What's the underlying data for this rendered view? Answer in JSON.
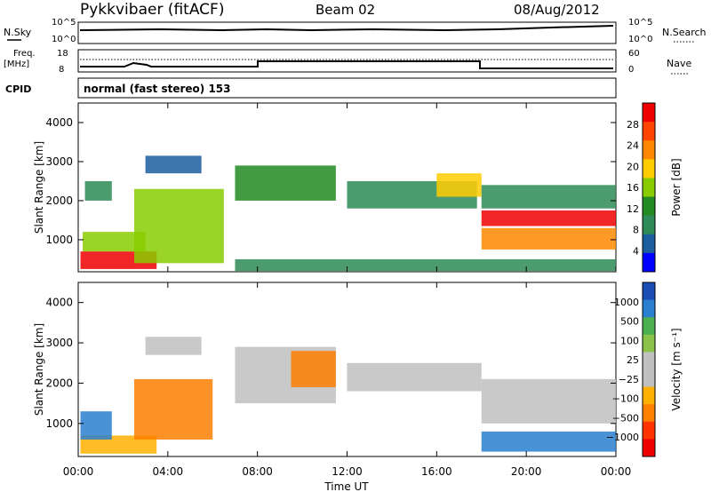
{
  "header": {
    "station": "Pykkvibaer (fitACF)",
    "beam": "Beam 02",
    "date": "08/Aug/2012"
  },
  "status_panels": {
    "nsky": {
      "label": "N.Sky",
      "ticks_left": [
        "10^5",
        "10^0"
      ]
    },
    "nsearch": {
      "label": "N.Search",
      "ticks_right": [
        "10^5",
        "10^0"
      ]
    },
    "freq": {
      "label_line1": "Freq.",
      "label_line2": "[MHz]",
      "ticks_left": [
        "18",
        "8"
      ]
    },
    "nave": {
      "label": "Nave",
      "ticks_right": [
        "60",
        "0"
      ]
    },
    "cpid": {
      "label": "CPID",
      "program": "normal (fast stereo) 153"
    }
  },
  "chart_data": [
    {
      "type": "heatmap",
      "name": "power",
      "ylabel": "Slant Range [km]",
      "ylim": [
        180,
        4500
      ],
      "yticks": [
        "4000",
        "3000",
        "2000",
        "1000"
      ],
      "xlabel": "Time UT",
      "xticks": [
        "00:00",
        "04:00",
        "08:00",
        "12:00",
        "16:00",
        "20:00",
        "00:00"
      ],
      "colorbar": {
        "label": "Power [dB]",
        "ticks": [
          "28",
          "24",
          "20",
          "16",
          "12",
          "8",
          "4"
        ],
        "colors": [
          "#ee0000",
          "#ff4400",
          "#ff8800",
          "#ffcc00",
          "#88cc00",
          "#228b22",
          "#2e8b57",
          "#1b5e9e",
          "#0000ff"
        ]
      },
      "regions": [
        {
          "t0": 0.1,
          "t1": 3.5,
          "r0": 250,
          "r1": 700,
          "level": 28
        },
        {
          "t0": 0.2,
          "t1": 3.0,
          "r0": 700,
          "r1": 1200,
          "level": 14
        },
        {
          "t0": 0.3,
          "t1": 1.5,
          "r0": 2000,
          "r1": 2500,
          "level": 8
        },
        {
          "t0": 2.5,
          "t1": 6.5,
          "r0": 400,
          "r1": 2300,
          "level": 12
        },
        {
          "t0": 3.0,
          "t1": 5.5,
          "r0": 2700,
          "r1": 3150,
          "level": 6
        },
        {
          "t0": 7.0,
          "t1": 11.5,
          "r0": 2000,
          "r1": 2900,
          "level": 10
        },
        {
          "t0": 12.0,
          "t1": 17.8,
          "r0": 1800,
          "r1": 2500,
          "level": 9
        },
        {
          "t0": 16.0,
          "t1": 18.0,
          "r0": 2100,
          "r1": 2700,
          "level": 16
        },
        {
          "t0": 18.0,
          "t1": 24.0,
          "r0": 1350,
          "r1": 1750,
          "level": 26
        },
        {
          "t0": 18.0,
          "t1": 24.0,
          "r0": 750,
          "r1": 1300,
          "level": 18
        },
        {
          "t0": 18.0,
          "t1": 24.0,
          "r0": 1800,
          "r1": 2400,
          "level": 8
        },
        {
          "t0": 7.0,
          "t1": 24.0,
          "r0": 200,
          "r1": 500,
          "level": 7
        }
      ]
    },
    {
      "type": "heatmap",
      "name": "velocity",
      "ylabel": "Slant Range [km]",
      "ylim": [
        180,
        4500
      ],
      "yticks": [
        "4000",
        "3000",
        "2000",
        "1000"
      ],
      "xlabel": "Time UT",
      "xticks": [
        "00:00",
        "04:00",
        "08:00",
        "12:00",
        "16:00",
        "20:00",
        "00:00"
      ],
      "colorbar": {
        "label": "Velocity [m s⁻¹]",
        "ticks": [
          "1000",
          "500",
          "100",
          "25",
          "−25",
          "−100",
          "−500",
          "−1000"
        ],
        "colors": [
          "#1b4fb5",
          "#2a7fcf",
          "#4caf50",
          "#8bc34a",
          "#c0c0c0",
          "#c0c0c0",
          "#ffb000",
          "#ff7f00",
          "#ff3300",
          "#ee0000"
        ]
      },
      "regions": [
        {
          "t0": 0.1,
          "t1": 3.5,
          "r0": 250,
          "r1": 700,
          "level": -200
        },
        {
          "t0": 0.1,
          "t1": 1.5,
          "r0": 600,
          "r1": 1300,
          "level": 600
        },
        {
          "t0": 2.5,
          "t1": 6.0,
          "r0": 600,
          "r1": 2100,
          "level": -300
        },
        {
          "t0": 3.0,
          "t1": 5.5,
          "r0": 2700,
          "r1": 3150,
          "level": 0
        },
        {
          "t0": 7.0,
          "t1": 11.5,
          "r0": 1500,
          "r1": 2900,
          "level": 0
        },
        {
          "t0": 9.5,
          "t1": 11.5,
          "r0": 1900,
          "r1": 2800,
          "level": -400
        },
        {
          "t0": 12.0,
          "t1": 18.0,
          "r0": 1800,
          "r1": 2500,
          "level": 0
        },
        {
          "t0": 18.0,
          "t1": 24.0,
          "r0": 1000,
          "r1": 2100,
          "level": 0
        },
        {
          "t0": 18.0,
          "t1": 24.0,
          "r0": 300,
          "r1": 800,
          "level": 300
        }
      ]
    }
  ]
}
